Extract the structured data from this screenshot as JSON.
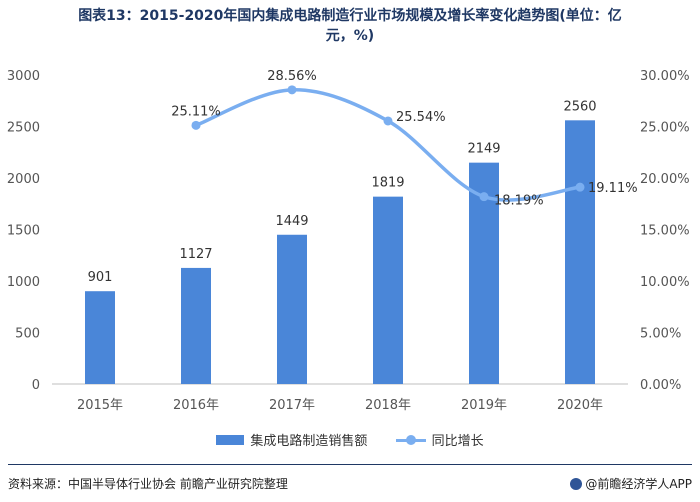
{
  "title": {
    "line1": "图表13：2015-2020年国内集成电路制造行业市场规模及增长率变化趋势图(单位：亿",
    "line2": "元，%)"
  },
  "legend": {
    "bar_label": "集成电路制造销售额",
    "line_label": "同比增长"
  },
  "footer": {
    "source": "资料来源：中国半导体行业协会 前瞻产业研究院整理",
    "brand": "@前瞻经济学人APP"
  },
  "colors": {
    "bar": "#4a86d8",
    "line": "#7aaef0",
    "title": "#1f3864"
  },
  "chart_data": {
    "type": "bar",
    "categories": [
      "2015年",
      "2016年",
      "2017年",
      "2018年",
      "2019年",
      "2020年"
    ],
    "series": [
      {
        "name": "集成电路制造销售额",
        "type": "bar",
        "axis": "left",
        "values": [
          901,
          1127,
          1449,
          1819,
          2149,
          2560
        ]
      },
      {
        "name": "同比增长",
        "type": "line",
        "axis": "right",
        "smooth": true,
        "values": [
          null,
          25.11,
          28.56,
          25.54,
          18.19,
          19.11
        ],
        "labels": [
          "",
          "25.11%",
          "28.56%",
          "25.54%",
          "18.19%",
          "19.11%"
        ]
      }
    ],
    "y_left": {
      "min": 0,
      "max": 3000,
      "ticks": [
        0,
        500,
        1000,
        1500,
        2000,
        2500,
        3000
      ],
      "tick_labels": [
        "0",
        "500",
        "1000",
        "1500",
        "2000",
        "2500",
        "3000"
      ]
    },
    "y_right": {
      "min": 0,
      "max": 30,
      "ticks": [
        0,
        5,
        10,
        15,
        20,
        25,
        30
      ],
      "tick_labels": [
        "0.00%",
        "5.00%",
        "10.00%",
        "15.00%",
        "20.00%",
        "25.00%",
        "30.00%"
      ]
    },
    "grid": false,
    "legend_position": "bottom"
  }
}
